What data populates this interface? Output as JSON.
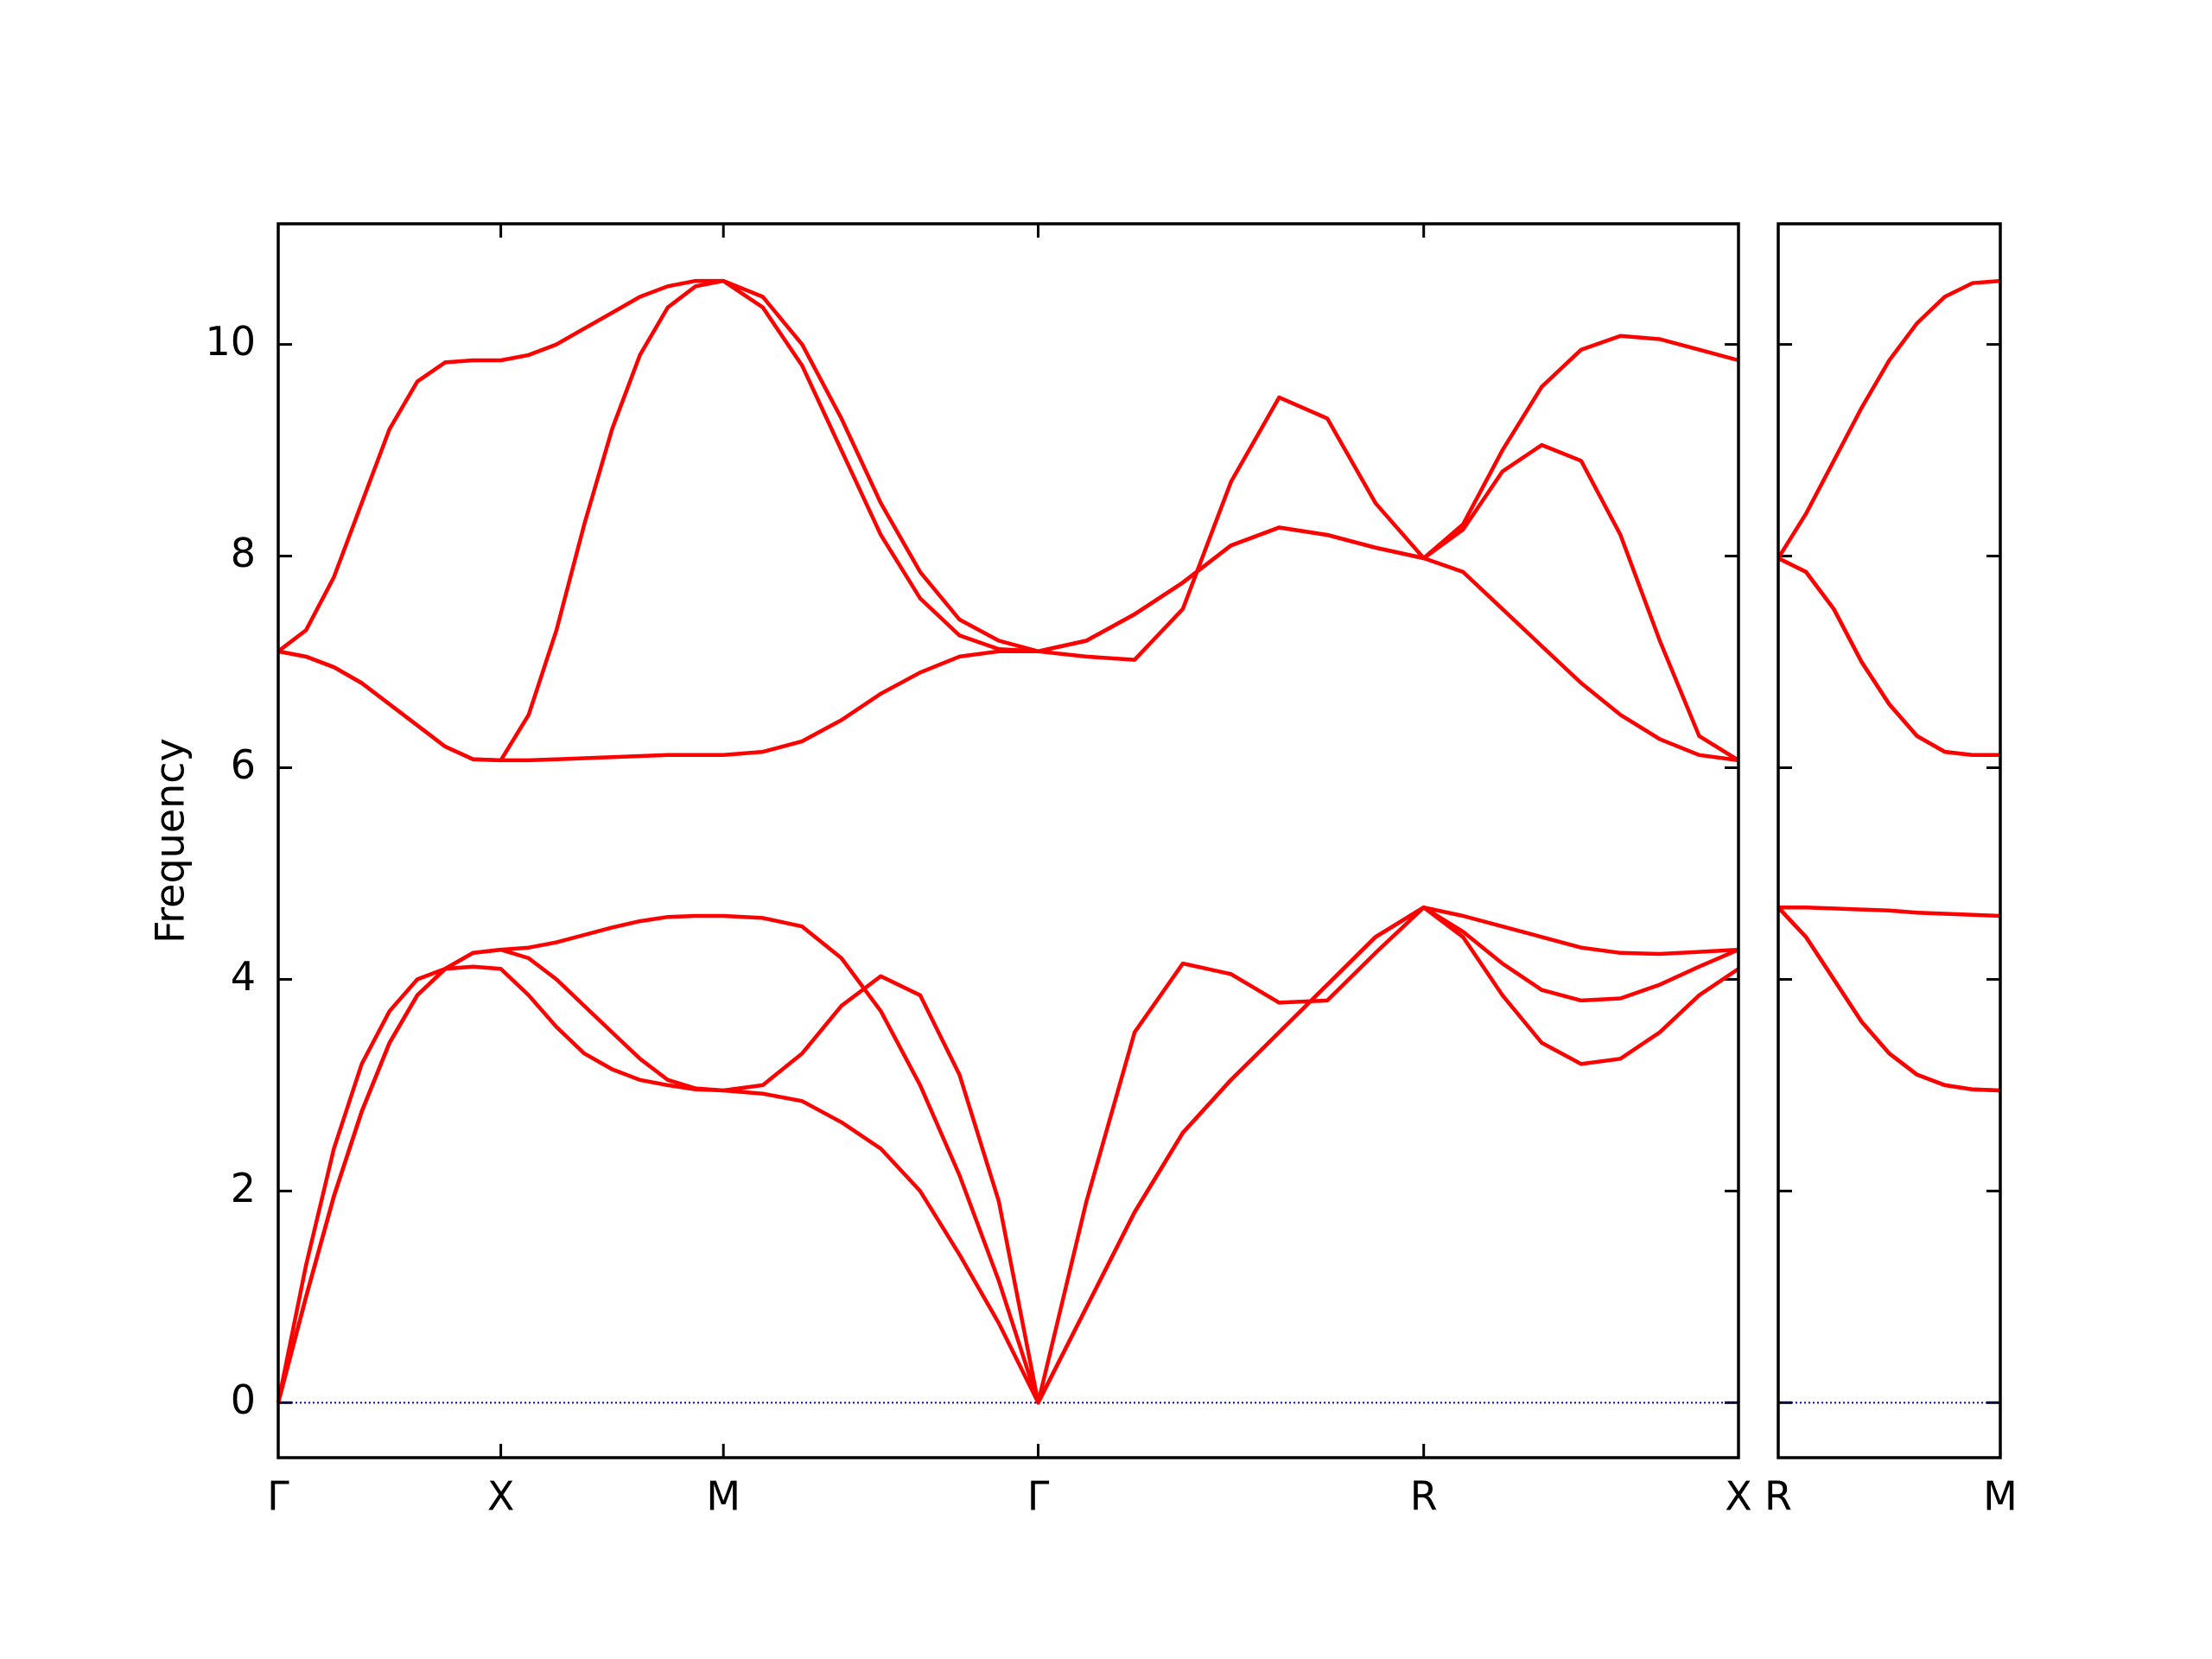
{
  "chart_data": [
    {
      "type": "line",
      "ylabel": "Frequency",
      "x": [
        0,
        0.0625,
        0.125,
        0.1875,
        0.25,
        0.3125,
        0.375,
        0.4375,
        0.5,
        0.5625,
        0.625,
        0.6875,
        0.75,
        0.8125,
        0.875,
        0.9375,
        1.0,
        1.0884,
        1.1768,
        1.2652,
        1.3536,
        1.4419,
        1.5303,
        1.6187,
        1.7071,
        1.8154,
        1.9236,
        2.0319,
        2.1401,
        2.2484,
        2.3566,
        2.4649,
        2.5731,
        2.6615,
        2.7499,
        2.8383,
        2.9267,
        3.015,
        3.1034,
        3.1918,
        3.2802
      ],
      "series": [
        {
          "color": "#ff0000",
          "values": [
            0,
            1.3,
            2.4,
            3.2,
            3.7,
            4.0,
            4.1,
            4.12,
            4.1,
            3.85,
            3.55,
            3.3,
            3.15,
            3.05,
            3.0,
            2.96,
            2.95,
            2.92,
            2.85,
            2.65,
            2.4,
            2.0,
            1.4,
            0.75,
            0,
            0.9,
            1.8,
            2.55,
            3.05,
            3.5,
            3.95,
            4.4,
            4.68,
            4.4,
            3.85,
            3.4,
            3.2,
            3.25,
            3.5,
            3.85,
            4.1
          ]
        },
        {
          "color": "#ff0000",
          "values": [
            0,
            1.0,
            1.95,
            2.75,
            3.4,
            3.85,
            4.1,
            4.25,
            4.28,
            4.2,
            4.0,
            3.75,
            3.5,
            3.25,
            3.05,
            2.97,
            2.95,
            3.0,
            3.3,
            3.75,
            4.03,
            3.85,
            3.1,
            1.9,
            0,
            0.9,
            1.8,
            2.55,
            3.05,
            3.5,
            3.95,
            4.4,
            4.68,
            4.45,
            4.15,
            3.9,
            3.8,
            3.82,
            3.95,
            4.12,
            4.28
          ]
        },
        {
          "color": "#ff0000",
          "values": [
            0,
            1.0,
            1.95,
            2.75,
            3.4,
            3.85,
            4.1,
            4.25,
            4.28,
            4.3,
            4.35,
            4.42,
            4.49,
            4.55,
            4.59,
            4.6,
            4.6,
            4.58,
            4.5,
            4.2,
            3.7,
            3.0,
            2.15,
            1.15,
            0,
            1.9,
            3.5,
            4.15,
            4.05,
            3.78,
            3.8,
            4.25,
            4.68,
            4.6,
            4.5,
            4.4,
            4.3,
            4.25,
            4.24,
            4.26,
            4.28
          ]
        },
        {
          "color": "#ff0000",
          "values": [
            7.1,
            7.05,
            6.95,
            6.8,
            6.6,
            6.4,
            6.2,
            6.08,
            6.07,
            6.07,
            6.08,
            6.09,
            6.1,
            6.11,
            6.12,
            6.12,
            6.12,
            6.15,
            6.25,
            6.45,
            6.7,
            6.9,
            7.05,
            7.1,
            7.1,
            7.2,
            7.45,
            7.75,
            8.1,
            8.27,
            8.2,
            8.08,
            7.98,
            7.85,
            7.5,
            7.15,
            6.8,
            6.5,
            6.27,
            6.12,
            6.07
          ]
        },
        {
          "color": "#ff0000",
          "values": [
            7.1,
            7.05,
            6.95,
            6.8,
            6.6,
            6.4,
            6.2,
            6.08,
            6.07,
            6.5,
            7.3,
            8.3,
            9.2,
            9.9,
            10.35,
            10.55,
            10.6,
            10.35,
            9.8,
            9.0,
            8.2,
            7.6,
            7.25,
            7.12,
            7.1,
            7.2,
            7.45,
            7.75,
            8.1,
            8.27,
            8.2,
            8.08,
            7.98,
            8.25,
            8.8,
            9.05,
            8.9,
            8.2,
            7.2,
            6.3,
            6.07
          ]
        },
        {
          "color": "#ff0000",
          "values": [
            7.1,
            7.3,
            7.8,
            8.5,
            9.2,
            9.65,
            9.83,
            9.85,
            9.85,
            9.9,
            10.0,
            10.15,
            10.3,
            10.45,
            10.55,
            10.6,
            10.6,
            10.45,
            10.0,
            9.3,
            8.5,
            7.85,
            7.4,
            7.2,
            7.1,
            7.05,
            7.02,
            7.5,
            8.7,
            9.5,
            9.3,
            8.5,
            7.98,
            8.3,
            9.0,
            9.6,
            9.95,
            10.08,
            10.05,
            9.95,
            9.85
          ]
        }
      ],
      "xlim": [
        0,
        3.2802
      ],
      "ylim": [
        -0.52,
        11.14
      ],
      "xticks": [
        {
          "value": 0,
          "label": "Γ"
        },
        {
          "value": 0.5,
          "label": "X"
        },
        {
          "value": 1.0,
          "label": "M"
        },
        {
          "value": 1.7071,
          "label": "Γ"
        },
        {
          "value": 2.5731,
          "label": "R"
        },
        {
          "value": 3.2802,
          "label": "X"
        }
      ],
      "yticks": [
        0,
        2,
        4,
        6,
        8,
        10
      ],
      "show_ytick_labels": true,
      "zero_line_color": "#0000cc"
    },
    {
      "type": "line",
      "x": [
        0,
        0.0884,
        0.1768,
        0.2652,
        0.3536,
        0.4419,
        0.5303,
        0.6187,
        0.7071
      ],
      "series": [
        {
          "color": "#ff0000",
          "values": [
            4.68,
            4.4,
            4.0,
            3.6,
            3.3,
            3.1,
            3.0,
            2.96,
            2.95
          ]
        },
        {
          "color": "#ff0000",
          "values": [
            4.68,
            4.4,
            4.0,
            3.6,
            3.3,
            3.1,
            3.0,
            2.96,
            2.95
          ]
        },
        {
          "color": "#ff0000",
          "values": [
            4.68,
            4.68,
            4.67,
            4.66,
            4.65,
            4.63,
            4.62,
            4.61,
            4.6
          ]
        },
        {
          "color": "#ff0000",
          "values": [
            7.98,
            7.85,
            7.5,
            7.0,
            6.6,
            6.3,
            6.15,
            6.12,
            6.12
          ]
        },
        {
          "color": "#ff0000",
          "values": [
            7.98,
            7.85,
            7.5,
            7.0,
            6.6,
            6.3,
            6.15,
            6.12,
            6.12
          ]
        },
        {
          "color": "#ff0000",
          "values": [
            7.98,
            8.4,
            8.9,
            9.4,
            9.85,
            10.2,
            10.45,
            10.58,
            10.6
          ]
        }
      ],
      "xlim": [
        0,
        0.7071
      ],
      "ylim": [
        -0.52,
        11.14
      ],
      "xticks": [
        {
          "value": 0,
          "label": "R"
        },
        {
          "value": 0.7071,
          "label": "M"
        }
      ],
      "yticks": [
        0,
        2,
        4,
        6,
        8,
        10
      ],
      "show_ytick_labels": false,
      "zero_line_color": "#0000cc"
    }
  ]
}
